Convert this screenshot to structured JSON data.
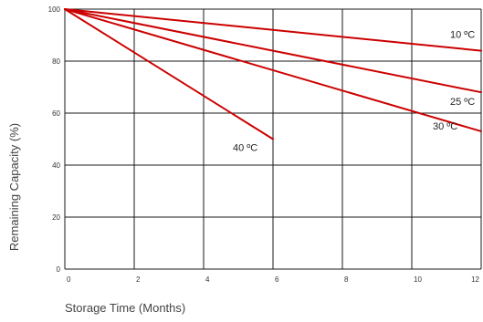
{
  "chart_data": {
    "type": "line",
    "title": "",
    "xlabel": "Storage Time (Months)",
    "ylabel": "Remaining Capacity (%)",
    "xlim": [
      0,
      12
    ],
    "ylim": [
      0,
      100
    ],
    "x_ticks": [
      "0",
      "2",
      "4",
      "6",
      "8",
      "10",
      "12"
    ],
    "y_ticks": [
      "0",
      "20",
      "40",
      "60",
      "80",
      "100"
    ],
    "grid": true,
    "series_color": "#cc0000",
    "series": [
      {
        "name": "10 ºC",
        "x": [
          0,
          12
        ],
        "y": [
          100,
          84
        ]
      },
      {
        "name": "25 ºC",
        "x": [
          0,
          12
        ],
        "y": [
          100,
          68
        ]
      },
      {
        "name": "30 ºC",
        "x": [
          0,
          12
        ],
        "y": [
          100,
          53
        ]
      },
      {
        "name": "40 ºC",
        "x": [
          0,
          6
        ],
        "y": [
          100,
          50
        ]
      }
    ]
  }
}
